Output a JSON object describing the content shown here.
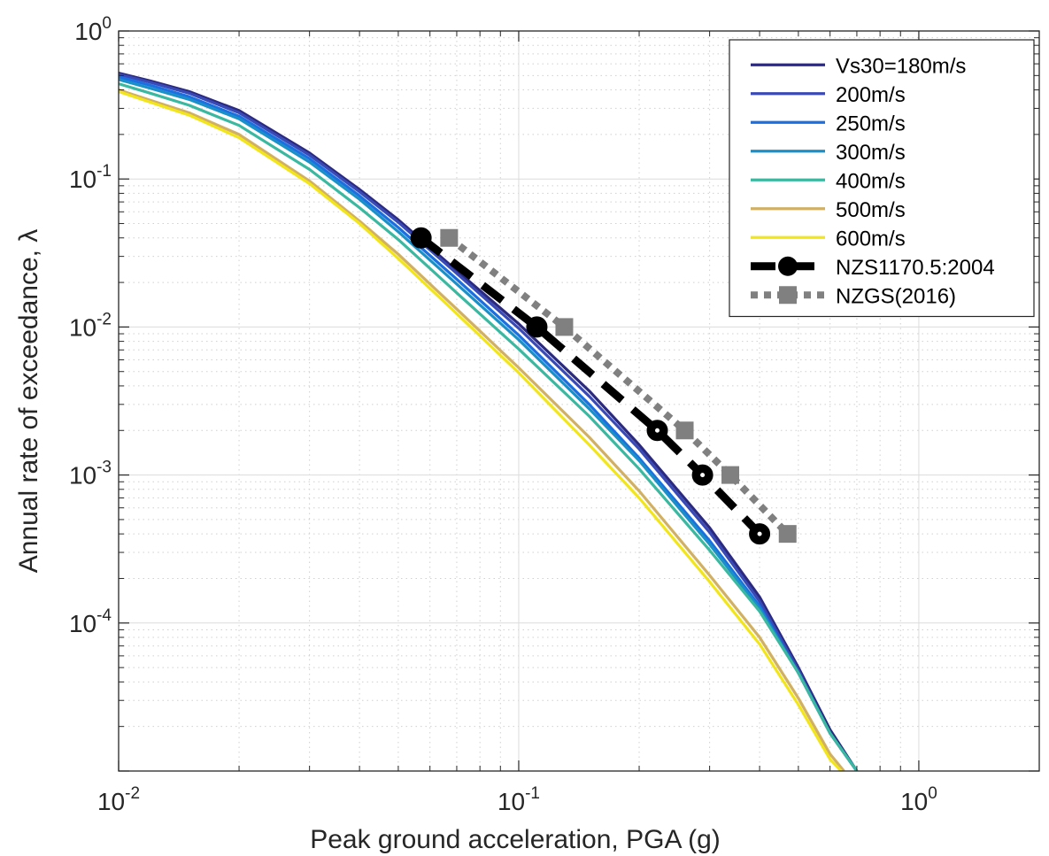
{
  "chart_data": {
    "type": "line",
    "xlabel": "Peak ground acceleration, PGA (g)",
    "ylabel": "Annual rate of exceedance, λ",
    "xscale": "log",
    "yscale": "log",
    "xlim": [
      0.01,
      2
    ],
    "ylim": [
      1e-05,
      1
    ],
    "grid": true,
    "minor_grid": true,
    "legend_position": "top-right",
    "x_ticks": [
      {
        "value": 0.01,
        "base": "10",
        "exp": "-2"
      },
      {
        "value": 0.1,
        "base": "10",
        "exp": "-1"
      },
      {
        "value": 1,
        "base": "10",
        "exp": "0"
      }
    ],
    "y_ticks": [
      {
        "value": 1,
        "base": "10",
        "exp": "0"
      },
      {
        "value": 0.1,
        "base": "10",
        "exp": "-1"
      },
      {
        "value": 0.01,
        "base": "10",
        "exp": "-2"
      },
      {
        "value": 0.001,
        "base": "10",
        "exp": "-3"
      },
      {
        "value": 0.0001,
        "base": "10",
        "exp": "-4"
      }
    ],
    "series": [
      {
        "name": "Vs30=180m/s",
        "color": "#2b2a7f",
        "style": "solid",
        "x": [
          0.01,
          0.012,
          0.015,
          0.02,
          0.03,
          0.04,
          0.05,
          0.07,
          0.1,
          0.15,
          0.2,
          0.3,
          0.4,
          0.5,
          0.6,
          0.7
        ],
        "y": [
          0.52,
          0.46,
          0.39,
          0.29,
          0.15,
          0.085,
          0.053,
          0.024,
          0.0105,
          0.0037,
          0.0016,
          0.00044,
          0.00015,
          5e-05,
          1.9e-05,
          1e-05
        ]
      },
      {
        "name": "200m/s",
        "color": "#3949b5",
        "style": "solid",
        "x": [
          0.01,
          0.012,
          0.015,
          0.02,
          0.03,
          0.04,
          0.05,
          0.07,
          0.1,
          0.15,
          0.2,
          0.3,
          0.4,
          0.5,
          0.6,
          0.7
        ],
        "y": [
          0.51,
          0.45,
          0.38,
          0.28,
          0.145,
          0.082,
          0.051,
          0.023,
          0.0098,
          0.0034,
          0.0015,
          0.00041,
          0.00014,
          4.8e-05,
          1.8e-05,
          1e-05
        ]
      },
      {
        "name": "250m/s",
        "color": "#1c6fe0",
        "style": "solid",
        "x": [
          0.01,
          0.012,
          0.015,
          0.02,
          0.03,
          0.04,
          0.05,
          0.07,
          0.1,
          0.15,
          0.2,
          0.3,
          0.4,
          0.5,
          0.6,
          0.7
        ],
        "y": [
          0.49,
          0.43,
          0.36,
          0.265,
          0.137,
          0.077,
          0.047,
          0.021,
          0.0088,
          0.003,
          0.0013,
          0.00036,
          0.00013,
          4.6e-05,
          1.8e-05,
          1e-05
        ]
      },
      {
        "name": "300m/s",
        "color": "#1a90c9",
        "style": "solid",
        "x": [
          0.01,
          0.012,
          0.015,
          0.02,
          0.03,
          0.04,
          0.05,
          0.07,
          0.1,
          0.15,
          0.2,
          0.3,
          0.4,
          0.5,
          0.6,
          0.7
        ],
        "y": [
          0.47,
          0.41,
          0.345,
          0.255,
          0.13,
          0.073,
          0.044,
          0.0195,
          0.0082,
          0.0028,
          0.00125,
          0.00034,
          0.000125,
          4.6e-05,
          1.8e-05,
          1e-05
        ]
      },
      {
        "name": "400m/s",
        "color": "#3ab8a0",
        "style": "solid",
        "x": [
          0.01,
          0.012,
          0.015,
          0.02,
          0.03,
          0.04,
          0.05,
          0.07,
          0.1,
          0.15,
          0.2,
          0.3,
          0.4,
          0.5,
          0.6,
          0.7
        ],
        "y": [
          0.44,
          0.38,
          0.315,
          0.23,
          0.116,
          0.064,
          0.039,
          0.017,
          0.0071,
          0.0025,
          0.0011,
          0.00031,
          0.00012,
          4.6e-05,
          1.8e-05,
          1e-05
        ]
      },
      {
        "name": "500m/s",
        "color": "#d1b064",
        "style": "solid",
        "x": [
          0.01,
          0.012,
          0.015,
          0.02,
          0.03,
          0.04,
          0.05,
          0.07,
          0.1,
          0.15,
          0.2,
          0.3,
          0.4,
          0.5,
          0.6,
          0.65
        ],
        "y": [
          0.4,
          0.34,
          0.28,
          0.2,
          0.097,
          0.052,
          0.031,
          0.0132,
          0.0053,
          0.0018,
          0.00078,
          0.00021,
          8e-05,
          3.1e-05,
          1.3e-05,
          1e-05
        ]
      },
      {
        "name": "600m/s",
        "color": "#f2e61a",
        "style": "solid",
        "x": [
          0.01,
          0.012,
          0.015,
          0.02,
          0.03,
          0.04,
          0.05,
          0.07,
          0.1,
          0.15,
          0.2,
          0.3,
          0.4,
          0.5,
          0.6,
          0.64
        ],
        "y": [
          0.39,
          0.33,
          0.27,
          0.19,
          0.093,
          0.05,
          0.029,
          0.0123,
          0.0049,
          0.0016,
          0.0007,
          0.00019,
          7.2e-05,
          2.8e-05,
          1.2e-05,
          1e-05
        ]
      },
      {
        "name": "NZS1170.5:2004",
        "color": "#000000",
        "style": "dashed",
        "marker": "circle",
        "x": [
          0.057,
          0.111,
          0.222,
          0.288,
          0.4
        ],
        "y": [
          0.04,
          0.01,
          0.002,
          0.001,
          0.0004
        ]
      },
      {
        "name": "NZGS(2016)",
        "color": "#808080",
        "style": "dotted",
        "marker": "square",
        "x": [
          0.067,
          0.13,
          0.26,
          0.338,
          0.47
        ],
        "y": [
          0.04,
          0.01,
          0.002,
          0.001,
          0.0004
        ]
      }
    ]
  }
}
